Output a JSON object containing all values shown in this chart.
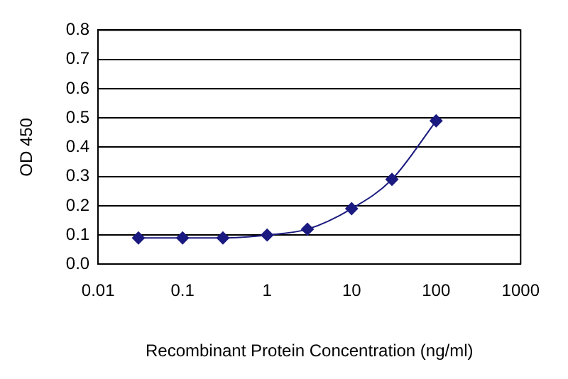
{
  "chart_data": {
    "type": "line",
    "xlabel": "Recombinant Protein Concentration (ng/ml)",
    "ylabel": "OD 450",
    "x": [
      0.03,
      0.1,
      0.3,
      1,
      3,
      10,
      30,
      100
    ],
    "series": [
      {
        "color": "#1a1a80",
        "values": [
          0.09,
          0.09,
          0.09,
          0.1,
          0.12,
          0.19,
          0.29,
          0.49
        ]
      }
    ],
    "log": "x",
    "xlim": [
      0.01,
      1000
    ],
    "xticks": [
      0.01,
      0.1,
      1,
      10,
      100,
      1000
    ],
    "ylim": [
      0,
      0.8
    ],
    "yticks": [
      {
        "value": 0,
        "label": "0.0"
      },
      {
        "value": 0.1,
        "label": "0.1"
      },
      {
        "value": 0.2,
        "label": "0.2"
      },
      {
        "value": 0.3,
        "label": "0.3"
      },
      {
        "value": 0.4,
        "label": "0.4"
      },
      {
        "value": 0.5,
        "label": "0.5"
      },
      {
        "value": 0.6,
        "label": "0.6"
      },
      {
        "value": 0.7,
        "label": "0.7"
      },
      {
        "value": 0.8,
        "label": "0.8"
      }
    ],
    "grid": "y",
    "marker": "diamond",
    "legend": false
  }
}
